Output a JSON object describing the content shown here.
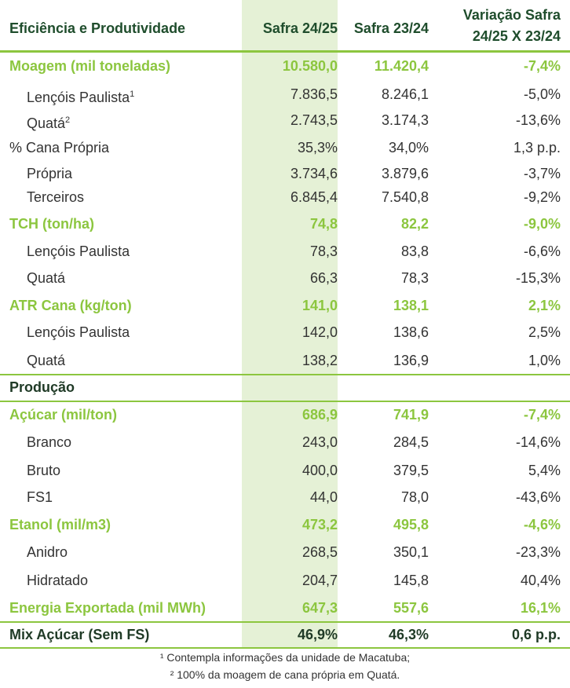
{
  "header": {
    "cells": [
      "Eficiência e Produtividade",
      "Safra 24/25",
      "Safra 23/24",
      [
        "Variação Safra",
        "24/25 X 23/24"
      ]
    ]
  },
  "table": {
    "rows": [
      {
        "label": "Moagem (mil toneladas)",
        "values": [
          "10.580,0",
          "11.420,4",
          "-7,4%"
        ]
      },
      {
        "label": "Lençóis Paulista",
        "sup": "1",
        "values": [
          "7.836,5",
          "8.246,1",
          "-5,0%"
        ]
      },
      {
        "label": "Quatá",
        "sup": "2",
        "values": [
          "2.743,5",
          "3.174,3",
          "-13,6%"
        ]
      },
      {
        "label": "% Cana Própria",
        "values": [
          "35,3%",
          "34,0%",
          "1,3 p.p."
        ]
      },
      {
        "label": "Própria",
        "values": [
          "3.734,6",
          "3.879,6",
          "-3,7%"
        ]
      },
      {
        "label": "Terceiros",
        "values": [
          "6.845,4",
          "7.540,8",
          "-9,2%"
        ]
      },
      {
        "label": "TCH (ton/ha)",
        "values": [
          "74,8",
          "82,2",
          "-9,0%"
        ]
      },
      {
        "label": "Lençóis Paulista",
        "values": [
          "78,3",
          "83,8",
          "-6,6%"
        ]
      },
      {
        "label": "Quatá",
        "values": [
          "66,3",
          "78,3",
          "-15,3%"
        ]
      },
      {
        "label": "ATR Cana (kg/ton)",
        "values": [
          "141,0",
          "138,1",
          "2,1%"
        ]
      },
      {
        "label": "Lençóis Paulista",
        "values": [
          "142,0",
          "138,6",
          "2,5%"
        ]
      },
      {
        "label": "Quatá",
        "values": [
          "138,2",
          "136,9",
          "1,0%"
        ]
      },
      {
        "label": "Produção"
      },
      {
        "label": "Açúcar (mil/ton)",
        "values": [
          "686,9",
          "741,9",
          "-7,4%"
        ]
      },
      {
        "label": "Branco",
        "values": [
          "243,0",
          "284,5",
          "-14,6%"
        ]
      },
      {
        "label": "Bruto",
        "values": [
          "400,0",
          "379,5",
          "5,4%"
        ]
      },
      {
        "label": "FS1",
        "values": [
          "44,0",
          "78,0",
          "-43,6%"
        ]
      },
      {
        "label": "Etanol (mil/m3)",
        "values": [
          "473,2",
          "495,8",
          "-4,6%"
        ]
      },
      {
        "label": "Anidro",
        "values": [
          "268,5",
          "350,1",
          "-23,3%"
        ]
      },
      {
        "label": "Hidratado",
        "values": [
          "204,7",
          "145,8",
          "40,4%"
        ]
      },
      {
        "label": "Energia Exportada (mil MWh)",
        "values": [
          "647,3",
          "557,6",
          "16,1%"
        ]
      },
      {
        "label": "Mix Açúcar (Sem FS)",
        "values": [
          "46,9%",
          "46,3%",
          "0,6 p.p."
        ]
      }
    ]
  },
  "footnotes": [
    "¹ Contempla informações da unidade de Macatuba;",
    "² 100% da moagem de cana própria em Quatá."
  ]
}
